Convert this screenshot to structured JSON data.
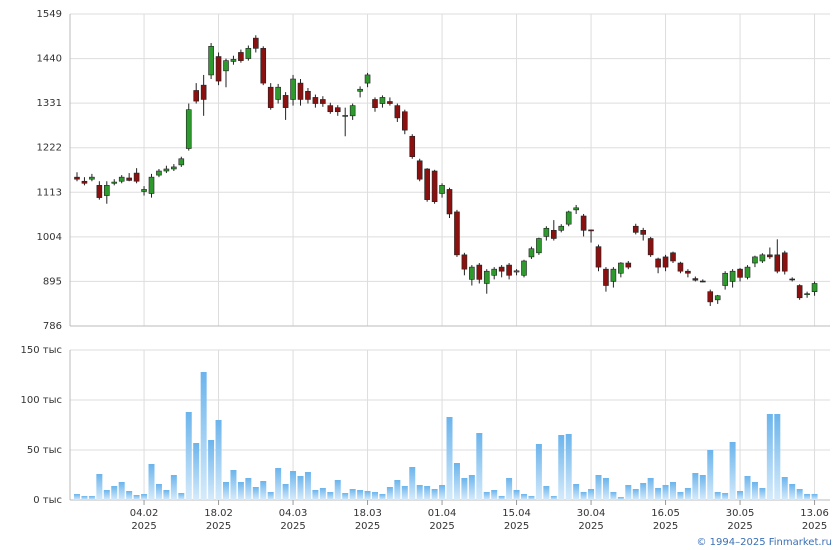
{
  "chart_data": [
    {
      "type": "candlestick",
      "ylim": [
        786,
        1549
      ],
      "yticks": [
        786,
        895,
        1004,
        1113,
        1222,
        1331,
        1440,
        1549
      ],
      "grid": true,
      "up_color": "#2e9a2e",
      "down_color": "#8b1010",
      "open": [
        1150,
        1140,
        1145,
        1130,
        1105,
        1135,
        1140,
        1148,
        1160,
        1115,
        1110,
        1155,
        1165,
        1170,
        1180,
        1220,
        1362,
        1375,
        1400,
        1445,
        1410,
        1433,
        1455,
        1440,
        1490,
        1465,
        1370,
        1340,
        1350,
        1340,
        1380,
        1360,
        1345,
        1340,
        1325,
        1320,
        1300,
        1300,
        1360,
        1380,
        1340,
        1330,
        1335,
        1325,
        1310,
        1250,
        1190,
        1170,
        1165,
        1110,
        1120,
        1065,
        960,
        900,
        935,
        890,
        910,
        930,
        935,
        918,
        910,
        955,
        965,
        1005,
        1020,
        1020,
        1035,
        1070,
        1055,
        1021,
        980,
        925,
        895,
        915,
        940,
        1030,
        1020,
        1000,
        950,
        955,
        965,
        940,
        920,
        902,
        896,
        870,
        850,
        885,
        895,
        925,
        905,
        940,
        945,
        960,
        960,
        965,
        901,
        885,
        863,
        870
      ],
      "high": [
        1162,
        1150,
        1158,
        1140,
        1140,
        1145,
        1155,
        1160,
        1172,
        1128,
        1158,
        1170,
        1178,
        1182,
        1200,
        1330,
        1380,
        1400,
        1478,
        1455,
        1440,
        1447,
        1462,
        1472,
        1497,
        1470,
        1380,
        1378,
        1358,
        1400,
        1390,
        1368,
        1352,
        1348,
        1332,
        1326,
        1320,
        1330,
        1372,
        1405,
        1345,
        1350,
        1345,
        1330,
        1315,
        1255,
        1195,
        1172,
        1168,
        1135,
        1124,
        1070,
        965,
        935,
        940,
        925,
        930,
        935,
        940,
        925,
        948,
        980,
        1002,
        1030,
        1045,
        1035,
        1068,
        1082,
        1060,
        1022,
        985,
        930,
        930,
        942,
        945,
        1036,
        1026,
        1004,
        953,
        960,
        968,
        943,
        925,
        907,
        900,
        875,
        862,
        920,
        925,
        928,
        935,
        958,
        964,
        978,
        998,
        970,
        905,
        888,
        870,
        895
      ],
      "low": [
        1140,
        1130,
        1140,
        1095,
        1085,
        1130,
        1135,
        1140,
        1135,
        1105,
        1100,
        1150,
        1160,
        1165,
        1175,
        1215,
        1330,
        1300,
        1390,
        1375,
        1370,
        1425,
        1430,
        1435,
        1455,
        1375,
        1315,
        1330,
        1290,
        1325,
        1325,
        1330,
        1320,
        1322,
        1305,
        1300,
        1250,
        1290,
        1345,
        1370,
        1310,
        1320,
        1325,
        1285,
        1255,
        1195,
        1140,
        1090,
        1085,
        1100,
        1050,
        955,
        910,
        885,
        890,
        865,
        900,
        905,
        900,
        910,
        905,
        950,
        960,
        995,
        995,
        1015,
        1030,
        1060,
        1005,
        990,
        920,
        870,
        880,
        905,
        925,
        1010,
        995,
        955,
        915,
        920,
        940,
        915,
        905,
        895,
        893,
        835,
        840,
        875,
        880,
        895,
        900,
        930,
        940,
        950,
        915,
        912,
        895,
        850,
        855,
        860
      ],
      "close": [
        1145,
        1135,
        1150,
        1100,
        1130,
        1138,
        1150,
        1142,
        1140,
        1120,
        1150,
        1165,
        1170,
        1175,
        1195,
        1315,
        1336,
        1340,
        1470,
        1385,
        1435,
        1438,
        1435,
        1465,
        1465,
        1380,
        1320,
        1370,
        1320,
        1390,
        1340,
        1340,
        1330,
        1330,
        1310,
        1310,
        1301,
        1325,
        1365,
        1400,
        1320,
        1345,
        1330,
        1295,
        1265,
        1200,
        1145,
        1095,
        1090,
        1130,
        1060,
        960,
        925,
        930,
        900,
        920,
        925,
        920,
        910,
        921,
        945,
        975,
        1000,
        1025,
        1000,
        1030,
        1065,
        1075,
        1020,
        1019,
        930,
        885,
        925,
        940,
        930,
        1015,
        1010,
        960,
        930,
        930,
        945,
        920,
        915,
        898,
        894,
        845,
        860,
        915,
        920,
        905,
        930,
        955,
        960,
        955,
        920,
        920,
        899,
        855,
        865,
        890
      ]
    },
    {
      "type": "bar",
      "ylim": [
        0,
        150
      ],
      "yticks": [
        {
          "value": 0,
          "label": "0 тыс"
        },
        {
          "value": 50,
          "label": "50 тыс"
        },
        {
          "value": 100,
          "label": "100 тыс"
        },
        {
          "value": 150,
          "label": "150 тыс"
        }
      ],
      "grid": true,
      "values": [
        6,
        4,
        4,
        26,
        10,
        14,
        18,
        9,
        5,
        6,
        36,
        16,
        10,
        25,
        7,
        88,
        57,
        128,
        60,
        80,
        18,
        30,
        18,
        22,
        13,
        19,
        8,
        32,
        16,
        29,
        24,
        28,
        10,
        12,
        8,
        20,
        7,
        11,
        10,
        9,
        8,
        6,
        13,
        20,
        14,
        33,
        15,
        14,
        11,
        15,
        83,
        37,
        22,
        25,
        67,
        8,
        10,
        4,
        22,
        10,
        6,
        4,
        56,
        14,
        4,
        65,
        66,
        16,
        8,
        11,
        25,
        22,
        8,
        3,
        15,
        11,
        17,
        22,
        12,
        15,
        18,
        8,
        12,
        27,
        25,
        50,
        8,
        7,
        58,
        9,
        24,
        18,
        12,
        86,
        86,
        23,
        16,
        11,
        6,
        6
      ],
      "categories": [
        null,
        null,
        null,
        null,
        null,
        null,
        null,
        null,
        null,
        "04.02",
        null,
        null,
        null,
        null,
        null,
        null,
        null,
        null,
        null,
        "18.02",
        null,
        null,
        null,
        null,
        null,
        null,
        null,
        null,
        null,
        "04.03",
        null,
        null,
        null,
        null,
        null,
        null,
        null,
        null,
        null,
        "18.03",
        null,
        null,
        null,
        null,
        null,
        null,
        null,
        null,
        null,
        "01.04",
        null,
        null,
        null,
        null,
        null,
        null,
        null,
        null,
        null,
        "15.04",
        null,
        null,
        null,
        null,
        null,
        null,
        null,
        null,
        null,
        "30.04",
        null,
        null,
        null,
        null,
        null,
        null,
        null,
        null,
        null,
        "16.05",
        null,
        null,
        null,
        null,
        null,
        null,
        null,
        null,
        null,
        "30.05",
        null,
        null,
        null,
        null,
        null,
        null,
        null,
        null,
        null,
        "13.06"
      ],
      "category_years": [
        null,
        null,
        null,
        null,
        null,
        null,
        null,
        null,
        null,
        "2025",
        null,
        null,
        null,
        null,
        null,
        null,
        null,
        null,
        null,
        "2025",
        null,
        null,
        null,
        null,
        null,
        null,
        null,
        null,
        null,
        "2025",
        null,
        null,
        null,
        null,
        null,
        null,
        null,
        null,
        null,
        "2025",
        null,
        null,
        null,
        null,
        null,
        null,
        null,
        null,
        null,
        "2025",
        null,
        null,
        null,
        null,
        null,
        null,
        null,
        null,
        null,
        "2025",
        null,
        null,
        null,
        null,
        null,
        null,
        null,
        null,
        null,
        "2025",
        null,
        null,
        null,
        null,
        null,
        null,
        null,
        null,
        null,
        "2025",
        null,
        null,
        null,
        null,
        null,
        null,
        null,
        null,
        null,
        "2025",
        null,
        null,
        null,
        null,
        null,
        null,
        null,
        null,
        null,
        "2025"
      ]
    }
  ],
  "footer": "© 1994–2025 Finmarket.ru"
}
